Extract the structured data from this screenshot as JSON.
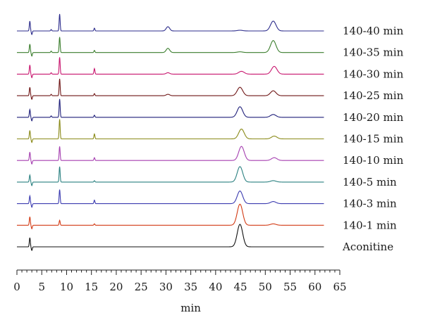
{
  "chart_data": {
    "type": "line",
    "xlabel": "min",
    "xlim": [
      0,
      65
    ],
    "x_ticks": [
      0,
      5,
      10,
      15,
      20,
      25,
      30,
      35,
      40,
      45,
      50,
      55,
      60,
      65
    ],
    "grid": false,
    "legend": "labels at right end of each trace",
    "series": [
      {
        "name": "140-40 min",
        "color": "#2d2d8c",
        "peaks": [
          {
            "x": 2.6,
            "h": 14
          },
          {
            "x": 3.0,
            "h": -5
          },
          {
            "x": 6.9,
            "h": 2
          },
          {
            "x": 8.6,
            "h": 24
          },
          {
            "x": 15.6,
            "h": 4
          },
          {
            "x": 30.4,
            "h": 6
          },
          {
            "x": 44.9,
            "h": 1
          },
          {
            "x": 51.6,
            "h": 14
          }
        ]
      },
      {
        "name": "140-35 min",
        "color": "#3a7d2c",
        "peaks": [
          {
            "x": 2.6,
            "h": 12
          },
          {
            "x": 3.0,
            "h": -5
          },
          {
            "x": 6.9,
            "h": 2
          },
          {
            "x": 8.6,
            "h": 22
          },
          {
            "x": 15.6,
            "h": 3
          },
          {
            "x": 30.4,
            "h": 6
          },
          {
            "x": 44.9,
            "h": 1
          },
          {
            "x": 51.6,
            "h": 17
          }
        ]
      },
      {
        "name": "140-30 min",
        "color": "#c8156e",
        "peaks": [
          {
            "x": 2.6,
            "h": 13
          },
          {
            "x": 3.0,
            "h": -5
          },
          {
            "x": 6.9,
            "h": 2
          },
          {
            "x": 8.6,
            "h": 24
          },
          {
            "x": 15.6,
            "h": 8
          },
          {
            "x": 30.4,
            "h": 2
          },
          {
            "x": 45.2,
            "h": 4
          },
          {
            "x": 51.8,
            "h": 11
          }
        ]
      },
      {
        "name": "140-25 min",
        "color": "#6e1414",
        "peaks": [
          {
            "x": 2.6,
            "h": 12
          },
          {
            "x": 3.0,
            "h": -5
          },
          {
            "x": 6.9,
            "h": 2
          },
          {
            "x": 8.6,
            "h": 24
          },
          {
            "x": 15.6,
            "h": 3
          },
          {
            "x": 30.4,
            "h": 2
          },
          {
            "x": 44.9,
            "h": 12
          },
          {
            "x": 51.6,
            "h": 7
          }
        ]
      },
      {
        "name": "140-20 min",
        "color": "#1f1f7a",
        "peaks": [
          {
            "x": 2.6,
            "h": 11
          },
          {
            "x": 3.0,
            "h": -5
          },
          {
            "x": 6.9,
            "h": 2
          },
          {
            "x": 8.6,
            "h": 26
          },
          {
            "x": 15.6,
            "h": 3
          },
          {
            "x": 44.9,
            "h": 15
          },
          {
            "x": 51.6,
            "h": 4
          }
        ]
      },
      {
        "name": "140-15 min",
        "color": "#8a8a18",
        "peaks": [
          {
            "x": 2.6,
            "h": 12
          },
          {
            "x": 3.0,
            "h": -5
          },
          {
            "x": 8.6,
            "h": 28
          },
          {
            "x": 15.6,
            "h": 7
          },
          {
            "x": 45.2,
            "h": 14
          },
          {
            "x": 51.8,
            "h": 4
          }
        ]
      },
      {
        "name": "140-10 min",
        "color": "#a53fb0",
        "peaks": [
          {
            "x": 2.6,
            "h": 12
          },
          {
            "x": 3.0,
            "h": -5
          },
          {
            "x": 8.6,
            "h": 20
          },
          {
            "x": 15.6,
            "h": 4
          },
          {
            "x": 45.2,
            "h": 20
          },
          {
            "x": 51.8,
            "h": 4
          }
        ]
      },
      {
        "name": "140-5 min",
        "color": "#2a8080",
        "peaks": [
          {
            "x": 2.6,
            "h": 10
          },
          {
            "x": 3.0,
            "h": -5
          },
          {
            "x": 8.6,
            "h": 22
          },
          {
            "x": 15.6,
            "h": 2
          },
          {
            "x": 44.9,
            "h": 22
          },
          {
            "x": 51.6,
            "h": 2
          }
        ]
      },
      {
        "name": "140-3 min",
        "color": "#3b3bb0",
        "peaks": [
          {
            "x": 2.6,
            "h": 11
          },
          {
            "x": 3.0,
            "h": -5
          },
          {
            "x": 8.6,
            "h": 20
          },
          {
            "x": 15.6,
            "h": 5
          },
          {
            "x": 44.9,
            "h": 18
          },
          {
            "x": 51.6,
            "h": 3
          }
        ]
      },
      {
        "name": "140-1 min",
        "color": "#d23a14",
        "peaks": [
          {
            "x": 2.6,
            "h": 12
          },
          {
            "x": 3.0,
            "h": -5
          },
          {
            "x": 8.6,
            "h": 7
          },
          {
            "x": 15.6,
            "h": 2
          },
          {
            "x": 44.9,
            "h": 30
          },
          {
            "x": 51.6,
            "h": 2
          }
        ]
      },
      {
        "name": "Aconitine",
        "color": "#111111",
        "peaks": [
          {
            "x": 2.6,
            "h": 13
          },
          {
            "x": 3.0,
            "h": -5
          },
          {
            "x": 44.9,
            "h": 32
          }
        ]
      }
    ]
  }
}
